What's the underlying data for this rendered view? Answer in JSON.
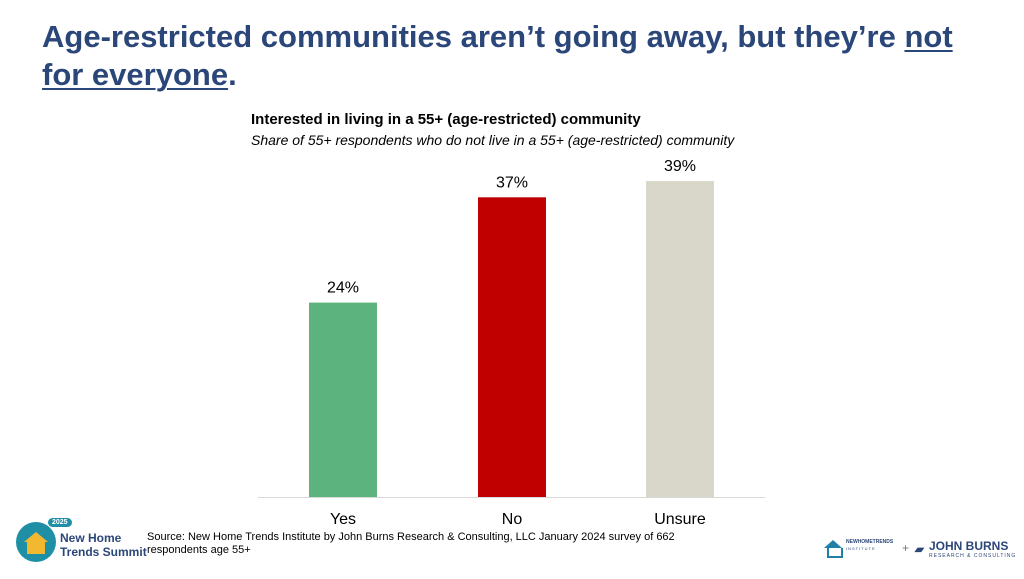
{
  "headline": {
    "part1": "Age-restricted communities aren’t going away, but they’re ",
    "underlined1": "not",
    "underlined2": "for everyone",
    "end": "."
  },
  "chart_data": {
    "type": "bar",
    "title": "Interested in living in a 55+ (age-restricted) community",
    "subtitle": "Share of 55+ respondents who do not live in a 55+ (age-restricted) community",
    "categories": [
      "Yes",
      "No",
      "Unsure"
    ],
    "values": [
      24,
      37,
      39
    ],
    "value_labels": [
      "24%",
      "37%",
      "39%"
    ],
    "colors": [
      "#5db37e",
      "#c00000",
      "#d9d6ca"
    ],
    "ylim": [
      0,
      40
    ],
    "grid": false,
    "legend": "none"
  },
  "source": "Source: New Home Trends Institute by John Burns Research & Consulting, LLC January 2024 survey of 662 respondents age 55+",
  "logos": {
    "summit_year": "2025",
    "summit_name_line1": "New Home",
    "summit_name_line2": "Trends Summit",
    "plus": "+",
    "jb_mark": "▰",
    "jb_name": "JOHN BURNS",
    "jb_sub": "RESEARCH & CONSULTING",
    "nht_name": "NEWHOMETRENDS",
    "nht_sub": "INSTITUTE"
  }
}
